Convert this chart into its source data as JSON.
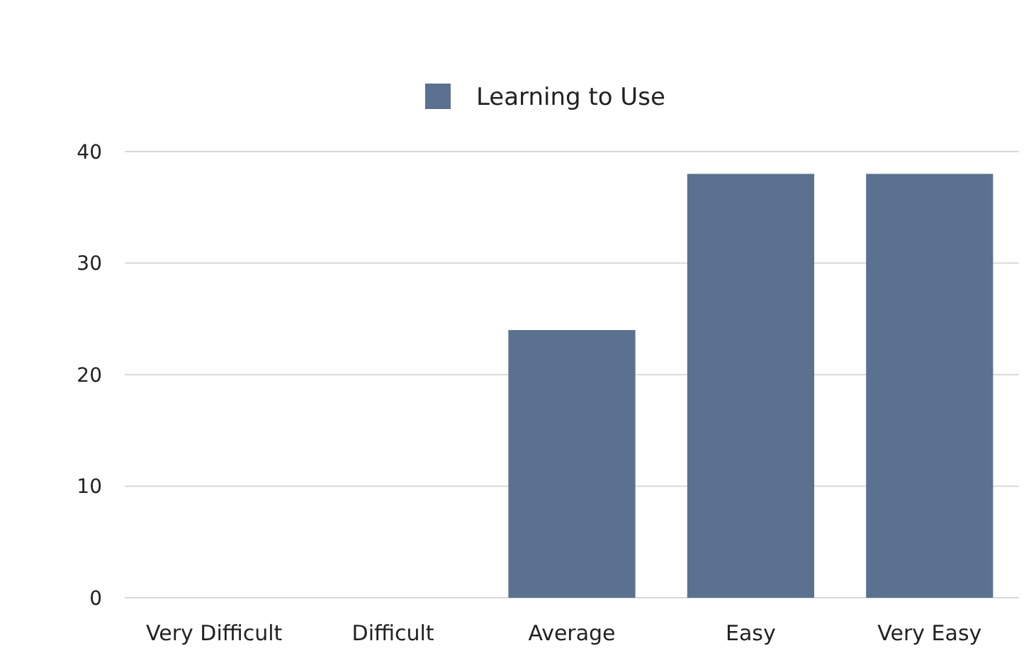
{
  "chart_data": {
    "type": "bar",
    "categories": [
      "Very Difficult",
      "Difficult",
      "Average",
      "Easy",
      "Very Easy"
    ],
    "series": [
      {
        "name": "Learning to Use",
        "color": "#5a7190",
        "values": [
          0,
          0,
          24,
          38,
          38
        ]
      }
    ],
    "ylim": [
      0,
      40
    ],
    "yticks": [
      0,
      10,
      20,
      30,
      40
    ],
    "grid": "y",
    "legend": "top"
  }
}
